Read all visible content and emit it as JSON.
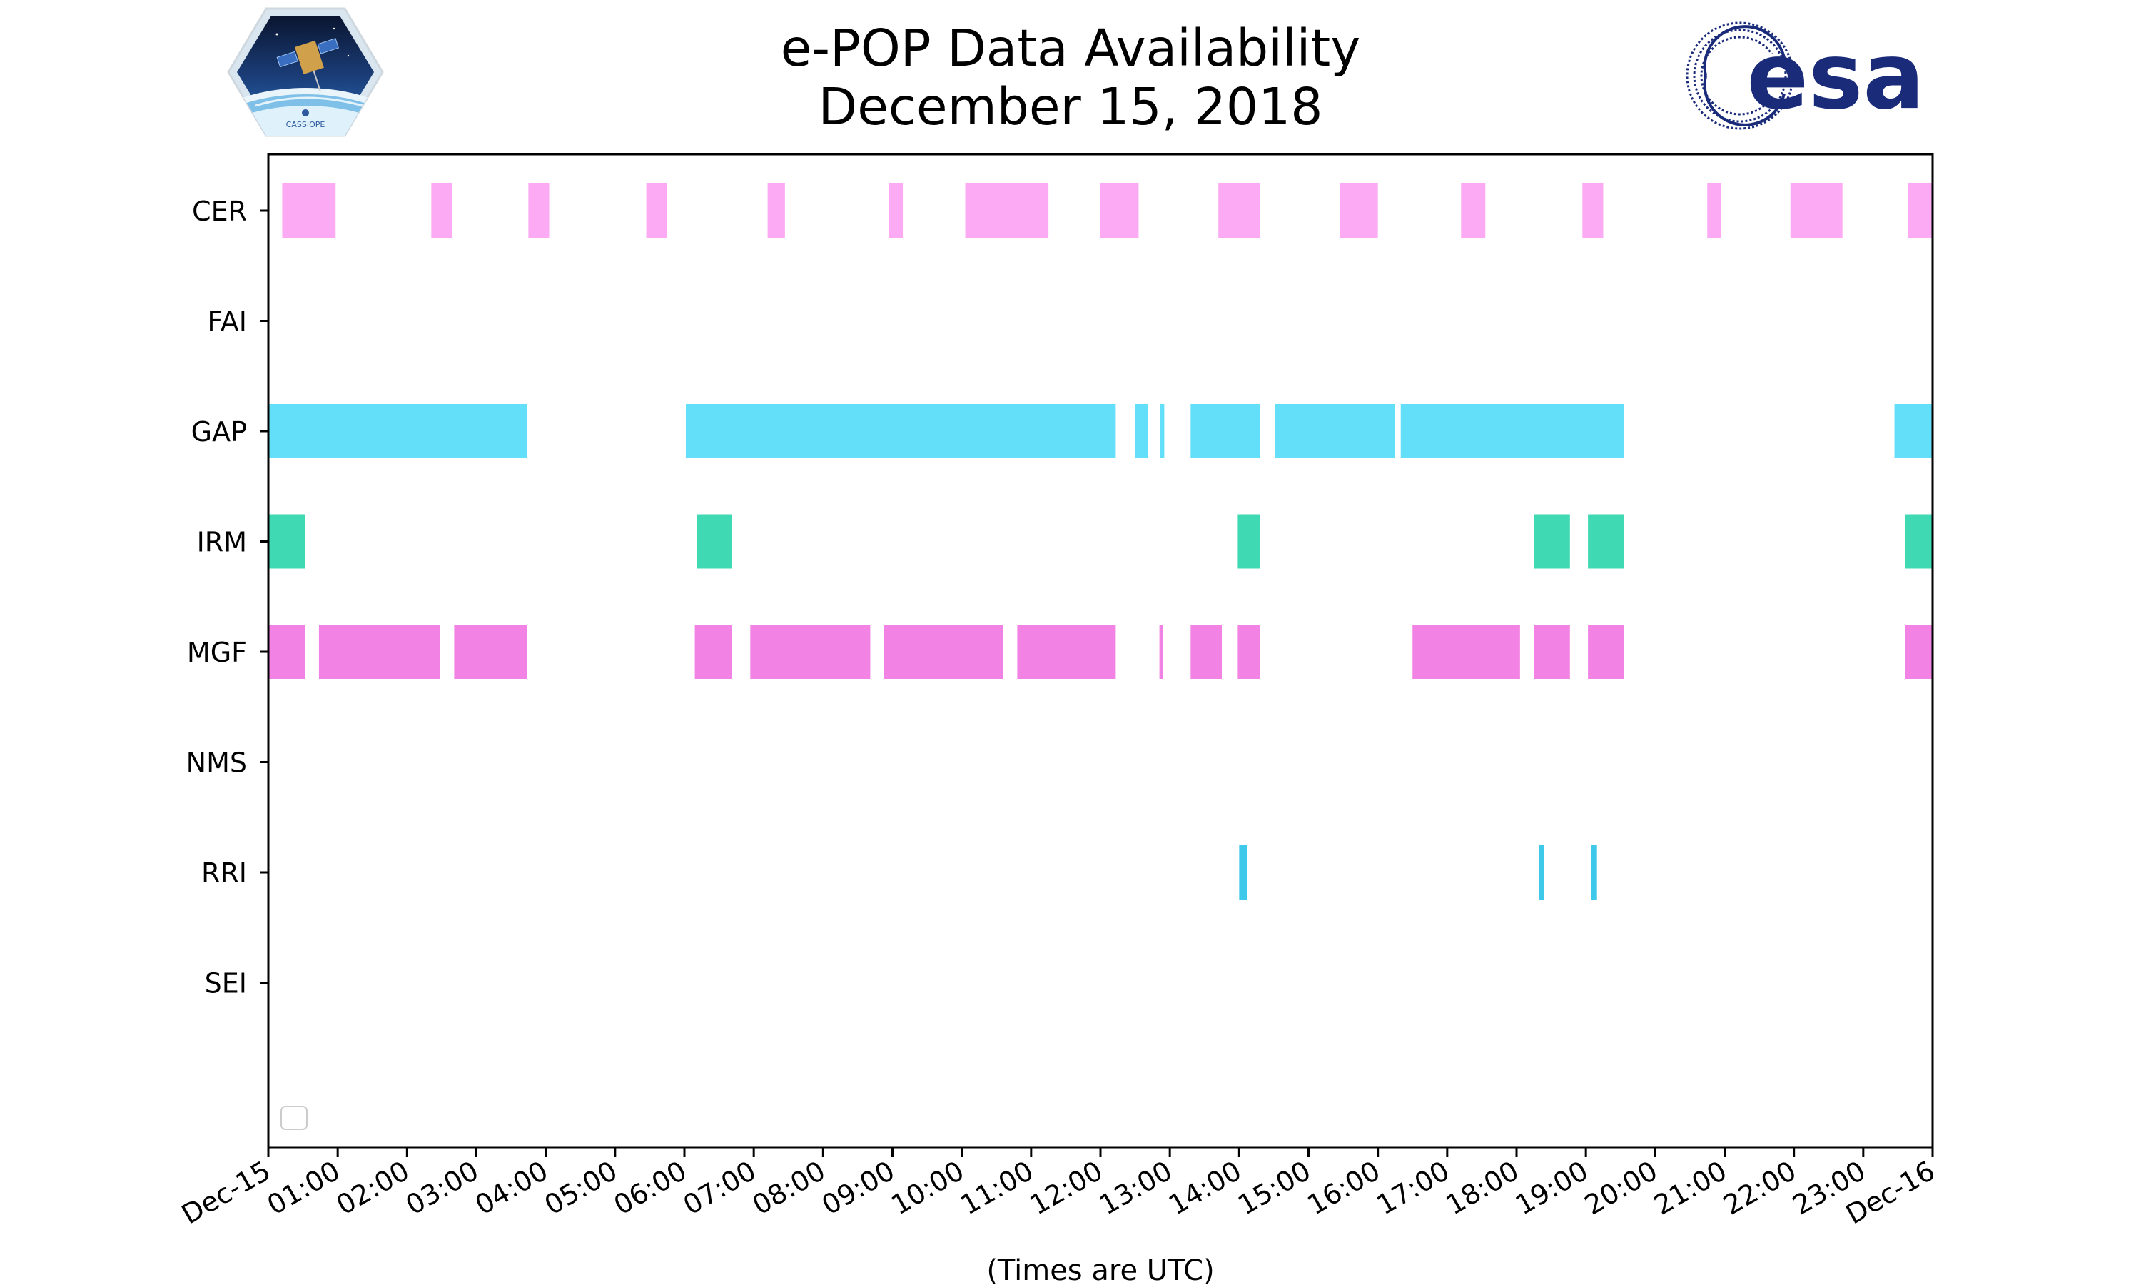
{
  "header": {
    "title_line1": "e-POP Data Availability",
    "title_line2": "December 15, 2018",
    "left_logo": {
      "name": "cassiope-mission-logo",
      "text": "CASSIOPE"
    },
    "right_logo": {
      "name": "esa-logo",
      "text": "esa",
      "color": "#1a2b7a"
    }
  },
  "chart_data": {
    "type": "timeline",
    "title": "e-POP Data Availability December 15, 2018",
    "xlabel": "(Times are UTC)",
    "ylabel": "",
    "x_unit": "hours UTC",
    "xlim": [
      0,
      24
    ],
    "x_ticks": [
      {
        "value": 0,
        "label": "Dec-15"
      },
      {
        "value": 1,
        "label": "01:00"
      },
      {
        "value": 2,
        "label": "02:00"
      },
      {
        "value": 3,
        "label": "03:00"
      },
      {
        "value": 4,
        "label": "04:00"
      },
      {
        "value": 5,
        "label": "05:00"
      },
      {
        "value": 6,
        "label": "06:00"
      },
      {
        "value": 7,
        "label": "07:00"
      },
      {
        "value": 8,
        "label": "08:00"
      },
      {
        "value": 9,
        "label": "09:00"
      },
      {
        "value": 10,
        "label": "10:00"
      },
      {
        "value": 11,
        "label": "11:00"
      },
      {
        "value": 12,
        "label": "12:00"
      },
      {
        "value": 13,
        "label": "13:00"
      },
      {
        "value": 14,
        "label": "14:00"
      },
      {
        "value": 15,
        "label": "15:00"
      },
      {
        "value": 16,
        "label": "16:00"
      },
      {
        "value": 17,
        "label": "17:00"
      },
      {
        "value": 18,
        "label": "18:00"
      },
      {
        "value": 19,
        "label": "19:00"
      },
      {
        "value": 20,
        "label": "20:00"
      },
      {
        "value": 21,
        "label": "21:00"
      },
      {
        "value": 22,
        "label": "22:00"
      },
      {
        "value": 23,
        "label": "23:00"
      },
      {
        "value": 24,
        "label": "Dec-16"
      }
    ],
    "legend": "lower-left (empty)",
    "grid": false,
    "series": [
      {
        "name": "CER",
        "color": "#fcaaf4",
        "intervals": [
          [
            0.2,
            0.97
          ],
          [
            2.35,
            2.65
          ],
          [
            3.75,
            4.05
          ],
          [
            5.45,
            5.75
          ],
          [
            7.2,
            7.45
          ],
          [
            8.95,
            9.15
          ],
          [
            10.05,
            11.25
          ],
          [
            12.0,
            12.55
          ],
          [
            13.7,
            14.3
          ],
          [
            15.45,
            16.0
          ],
          [
            17.2,
            17.55
          ],
          [
            18.95,
            19.25
          ],
          [
            20.75,
            20.95
          ],
          [
            21.95,
            22.7
          ],
          [
            23.65,
            24.0
          ]
        ]
      },
      {
        "name": "FAI",
        "color": "#9ad0f5",
        "intervals": []
      },
      {
        "name": "GAP",
        "color": "#64dff9",
        "intervals": [
          [
            0.0,
            3.73
          ],
          [
            6.02,
            12.22
          ],
          [
            12.5,
            12.68
          ],
          [
            12.86,
            12.92
          ],
          [
            13.3,
            14.3
          ],
          [
            14.52,
            16.25
          ],
          [
            16.33,
            18.35
          ],
          [
            18.35,
            19.55
          ],
          [
            23.45,
            24.0
          ]
        ]
      },
      {
        "name": "IRM",
        "color": "#3fd9b3",
        "intervals": [
          [
            0.0,
            0.53
          ],
          [
            6.18,
            6.68
          ],
          [
            13.98,
            14.3
          ],
          [
            18.25,
            18.77
          ],
          [
            19.03,
            19.55
          ],
          [
            23.6,
            24.0
          ]
        ]
      },
      {
        "name": "MGF",
        "color": "#f282e4",
        "intervals": [
          [
            0.0,
            0.53
          ],
          [
            0.73,
            2.48
          ],
          [
            2.68,
            3.73
          ],
          [
            6.15,
            6.68
          ],
          [
            6.95,
            8.68
          ],
          [
            8.88,
            10.6
          ],
          [
            10.8,
            12.22
          ],
          [
            12.85,
            12.9
          ],
          [
            13.3,
            13.75
          ],
          [
            13.98,
            14.3
          ],
          [
            16.5,
            18.05
          ],
          [
            18.25,
            18.77
          ],
          [
            19.03,
            19.55
          ],
          [
            23.6,
            24.0
          ]
        ]
      },
      {
        "name": "NMS",
        "color": "#b0b0b0",
        "intervals": []
      },
      {
        "name": "RRI",
        "color": "#3ec8ea",
        "intervals": [
          [
            14.0,
            14.12
          ],
          [
            18.32,
            18.4
          ],
          [
            19.08,
            19.16
          ]
        ]
      },
      {
        "name": "SEI",
        "color": "#b0b0b0",
        "intervals": []
      }
    ]
  }
}
